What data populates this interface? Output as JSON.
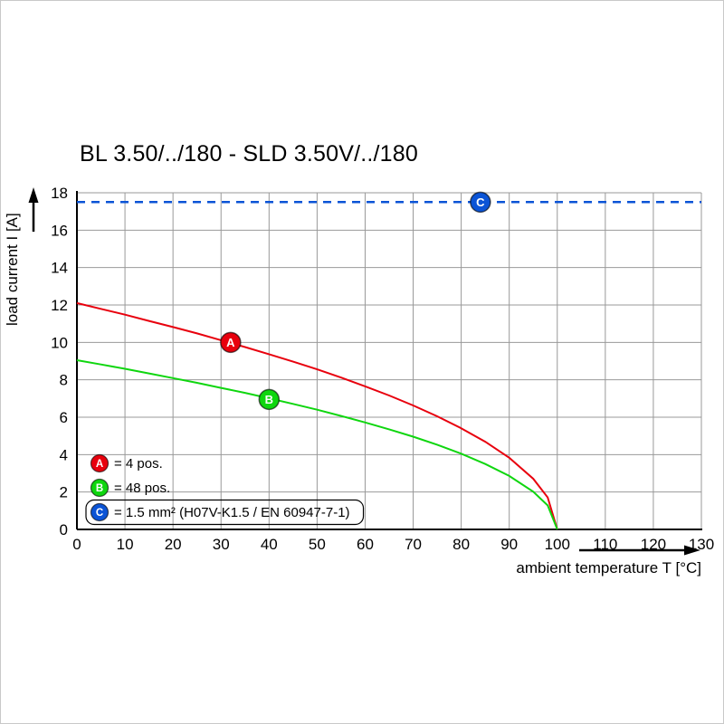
{
  "page": {
    "background": "#ffffff",
    "border_color": "#c9c9c9"
  },
  "chart_data": {
    "type": "line",
    "title": "BL 3.50/../180 - SLD 3.50V/../180",
    "xlabel": "ambient temperature T [°C]",
    "ylabel": "load current I [A]",
    "xlim": [
      0,
      130
    ],
    "ylim": [
      0,
      18
    ],
    "xticks": [
      0,
      10,
      20,
      30,
      40,
      50,
      60,
      70,
      80,
      90,
      100,
      110,
      120,
      130
    ],
    "yticks": [
      0,
      2,
      4,
      6,
      8,
      10,
      12,
      14,
      16,
      18
    ],
    "grid": true,
    "grid_color": "#999999",
    "axis_color": "#000000",
    "legend_position": "bottom-left",
    "series": [
      {
        "name": "A",
        "color": "#e8000d",
        "dash": "solid",
        "width": 2,
        "marker": {
          "x": 32,
          "y": 10
        },
        "points": [
          [
            0,
            12.1
          ],
          [
            5,
            11.79
          ],
          [
            10,
            11.48
          ],
          [
            15,
            11.15
          ],
          [
            20,
            10.82
          ],
          [
            25,
            10.48
          ],
          [
            30,
            10.12
          ],
          [
            35,
            9.75
          ],
          [
            40,
            9.37
          ],
          [
            45,
            8.97
          ],
          [
            50,
            8.56
          ],
          [
            55,
            8.12
          ],
          [
            60,
            7.65
          ],
          [
            65,
            7.16
          ],
          [
            70,
            6.63
          ],
          [
            75,
            6.05
          ],
          [
            80,
            5.41
          ],
          [
            85,
            4.69
          ],
          [
            90,
            3.83
          ],
          [
            95,
            2.71
          ],
          [
            98,
            1.71
          ],
          [
            100,
            0
          ]
        ]
      },
      {
        "name": "B",
        "color": "#0fd60f",
        "dash": "solid",
        "width": 2,
        "marker": {
          "x": 40,
          "y": 6.95
        },
        "points": [
          [
            0,
            9.05
          ],
          [
            5,
            8.82
          ],
          [
            10,
            8.59
          ],
          [
            15,
            8.34
          ],
          [
            20,
            8.09
          ],
          [
            25,
            7.84
          ],
          [
            30,
            7.57
          ],
          [
            35,
            7.3
          ],
          [
            40,
            7.01
          ],
          [
            45,
            6.71
          ],
          [
            50,
            6.4
          ],
          [
            55,
            6.07
          ],
          [
            60,
            5.72
          ],
          [
            65,
            5.35
          ],
          [
            70,
            4.96
          ],
          [
            75,
            4.53
          ],
          [
            80,
            4.05
          ],
          [
            85,
            3.5
          ],
          [
            90,
            2.86
          ],
          [
            95,
            2.02
          ],
          [
            98,
            1.28
          ],
          [
            100,
            0
          ]
        ]
      },
      {
        "name": "C",
        "color": "#0b54d6",
        "dash": "dashed",
        "width": 2.5,
        "marker": {
          "x": 84,
          "y": 17.5
        },
        "points": [
          [
            0,
            17.5
          ],
          [
            130,
            17.5
          ]
        ]
      }
    ],
    "legend": [
      {
        "key": "A",
        "color": "#e8000d",
        "label": "= 4 pos.",
        "boxed": false
      },
      {
        "key": "B",
        "color": "#0fd60f",
        "label": "= 48 pos.",
        "boxed": false
      },
      {
        "key": "C",
        "color": "#0b54d6",
        "label": "= 1.5 mm² (H07V-K1.5 / EN 60947-7-1)",
        "boxed": true
      }
    ]
  }
}
